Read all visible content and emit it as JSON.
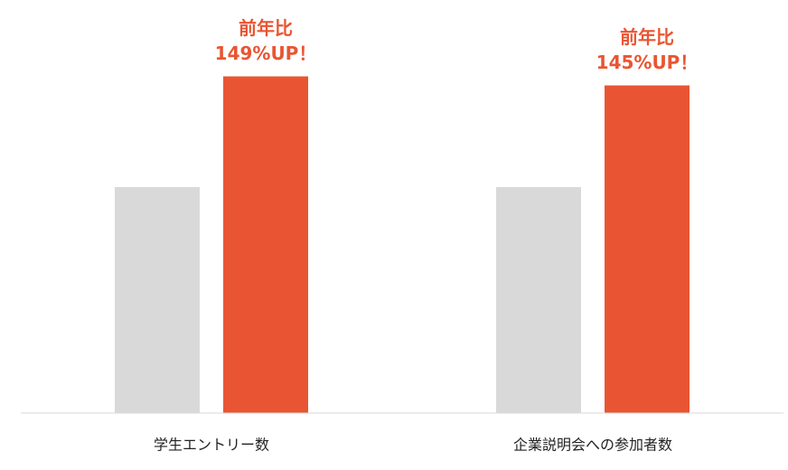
{
  "chart_data": {
    "type": "bar",
    "categories": [
      "学生エントリー数",
      "企業説明会への参加者数"
    ],
    "series": [
      {
        "color": "#d9d9d9",
        "values": [
          100,
          100
        ]
      },
      {
        "color": "#e95532",
        "values": [
          149,
          145
        ],
        "value_labels": [
          "149%UP！",
          "145%UP！"
        ],
        "annotations": [
          "前年比",
          "前年比"
        ]
      }
    ],
    "ylim": [
      0,
      150
    ]
  }
}
